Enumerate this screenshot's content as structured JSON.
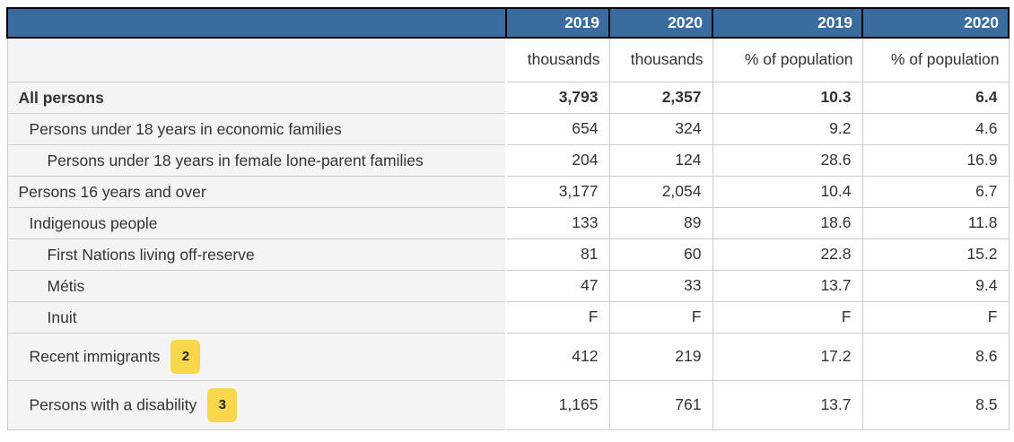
{
  "colors": {
    "header_blue": "#3A6C9F",
    "header_text": "#ffffff",
    "header_border": "#000000",
    "stub_background": "#f4f4f4",
    "cell_background": "#ffffff",
    "grid_line": "#cccccc",
    "body_text": "#333333",
    "footnote_badge": "#F8D74B"
  },
  "chart_data": {
    "type": "table",
    "year_headers": [
      "2019",
      "2020",
      "2019",
      "2020"
    ],
    "unit_headers": [
      "thousands",
      "thousands",
      "% of population",
      "% of population"
    ],
    "rows": [
      {
        "label": "All persons",
        "indent": 0,
        "bold": true,
        "values": [
          "3,793",
          "2,357",
          "10.3",
          "6.4"
        ]
      },
      {
        "label": "Persons under 18 years in economic families",
        "indent": 1,
        "values": [
          "654",
          "324",
          "9.2",
          "4.6"
        ]
      },
      {
        "label": "Persons under 18 years in female lone-parent families",
        "indent": 2,
        "values": [
          "204",
          "124",
          "28.6",
          "16.9"
        ]
      },
      {
        "label": "Persons 16 years and over",
        "indent": 0,
        "values": [
          "3,177",
          "2,054",
          "10.4",
          "6.7"
        ]
      },
      {
        "label": "Indigenous people",
        "indent": 1,
        "values": [
          "133",
          "89",
          "18.6",
          "11.8"
        ]
      },
      {
        "label": "First Nations living off-reserve",
        "indent": 2,
        "values": [
          "81",
          "60",
          "22.8",
          "15.2"
        ]
      },
      {
        "label": "Métis",
        "indent": 2,
        "values": [
          "47",
          "33",
          "13.7",
          "9.4"
        ]
      },
      {
        "label": "Inuit",
        "indent": 2,
        "values": [
          "F",
          "F",
          "F",
          "F"
        ]
      },
      {
        "label": "Recent immigrants",
        "indent": 1,
        "footnote": "2",
        "values": [
          "412",
          "219",
          "17.2",
          "8.6"
        ]
      },
      {
        "label": "Persons with a disability",
        "indent": 1,
        "footnote": "3",
        "values": [
          "1,165",
          "761",
          "13.7",
          "8.5"
        ]
      }
    ]
  }
}
